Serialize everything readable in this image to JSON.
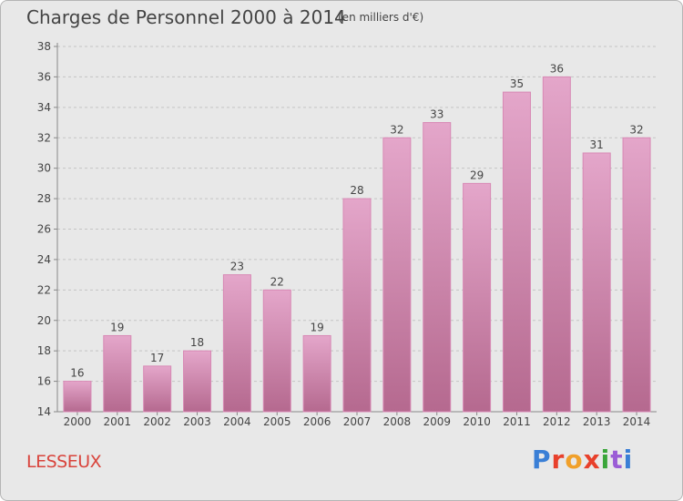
{
  "header": {
    "title": "Charges de Personnel 2000 à 2014",
    "subtitle": "(en milliers d'€)"
  },
  "commune": "LESSEUX",
  "logo": {
    "text": "Proxiti",
    "colors": [
      "#3a7fd6",
      "#e8402b",
      "#f0a02a",
      "#e8402b",
      "#3aa63a",
      "#9b5dd6",
      "#3a7fd6"
    ]
  },
  "chart_data": {
    "type": "bar",
    "categories": [
      "2000",
      "2001",
      "2002",
      "2003",
      "2004",
      "2005",
      "2006",
      "2007",
      "2008",
      "2009",
      "2010",
      "2011",
      "2012",
      "2013",
      "2014"
    ],
    "values": [
      16,
      19,
      17,
      18,
      23,
      22,
      19,
      28,
      32,
      33,
      29,
      35,
      36,
      31,
      32
    ],
    "ylim": [
      14,
      38
    ],
    "yticks": [
      14,
      16,
      18,
      20,
      22,
      24,
      26,
      28,
      30,
      32,
      34,
      36,
      38
    ],
    "grid": true,
    "bar_color_top": "#e4a6ca",
    "bar_color_bottom": "#b5698f"
  }
}
